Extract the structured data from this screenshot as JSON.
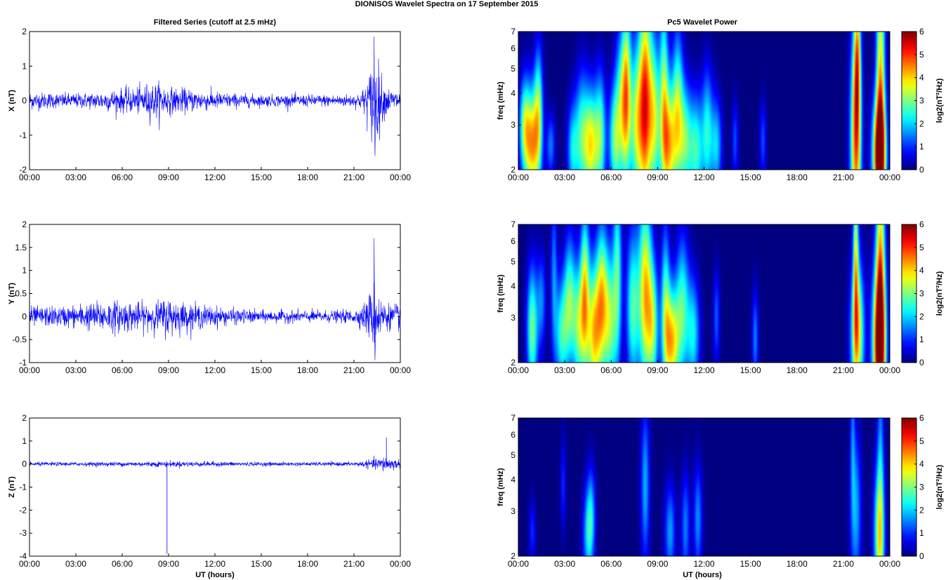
{
  "figure": {
    "title": "DIONISOS Wavelet Spectra on 17 September 2015",
    "left_title": "Filtered Series (cutoff at 2.5 mHz)",
    "right_title": "Pc5 Wavelet Power",
    "xlabel": "UT (hours)"
  },
  "chart_data": [
    {
      "type": "line",
      "panel": "time-series-x",
      "ylabel": "X (nT)",
      "ylim": [
        -2,
        2
      ],
      "yticks": [
        "-2",
        "-1",
        "0",
        "1",
        "2"
      ],
      "xticks": [
        "00:00",
        "03:00",
        "06:00",
        "09:00",
        "12:00",
        "15:00",
        "18:00",
        "21:00",
        "00:00"
      ],
      "xlim_hours": [
        0,
        24
      ],
      "color": "#0000ff",
      "series": [
        {
          "x_hours": [
            0,
            1,
            2,
            3,
            4,
            5,
            6,
            7,
            7.8,
            8.5,
            9,
            10,
            11,
            12,
            13,
            14,
            15,
            16,
            17,
            18,
            19,
            20,
            21,
            21.5,
            22,
            22.3,
            22.6,
            23,
            23.5,
            24
          ],
          "envelope": [
            0.3,
            0.28,
            0.25,
            0.25,
            0.28,
            0.35,
            0.4,
            0.45,
            0.6,
            0.6,
            0.45,
            0.4,
            0.35,
            0.3,
            0.25,
            0.22,
            0.2,
            0.2,
            0.2,
            0.2,
            0.2,
            0.2,
            0.22,
            0.3,
            0.9,
            1.8,
            1.2,
            0.5,
            0.35,
            0.4
          ]
        }
      ],
      "extremes": {
        "max": 1.85,
        "min": -1.6,
        "at_hours": 22.3
      }
    },
    {
      "type": "line",
      "panel": "time-series-y",
      "ylabel": "Y (nT)",
      "ylim": [
        -1,
        2
      ],
      "yticks": [
        "-1",
        "-0.5",
        "0",
        "0.5",
        "1",
        "1.5",
        "2"
      ],
      "xticks": [
        "00:00",
        "03:00",
        "06:00",
        "09:00",
        "12:00",
        "15:00",
        "18:00",
        "21:00",
        "00:00"
      ],
      "xlim_hours": [
        0,
        24
      ],
      "color": "#0000ff",
      "series": [
        {
          "x_hours": [
            0,
            1,
            2,
            3,
            4,
            5,
            6,
            7,
            8,
            9,
            10,
            11,
            12,
            13,
            14,
            15,
            16,
            17,
            18,
            19,
            20,
            21,
            21.5,
            22,
            22.3,
            22.6,
            23,
            23.5,
            24
          ],
          "envelope": [
            0.25,
            0.25,
            0.25,
            0.3,
            0.35,
            0.4,
            0.4,
            0.35,
            0.35,
            0.5,
            0.35,
            0.3,
            0.25,
            0.2,
            0.18,
            0.15,
            0.15,
            0.15,
            0.15,
            0.15,
            0.15,
            0.18,
            0.25,
            0.6,
            0.85,
            0.6,
            0.35,
            0.3,
            0.35
          ]
        }
      ],
      "extremes": {
        "max": 1.7,
        "min": -0.95,
        "at_hours": 22.3
      }
    },
    {
      "type": "line",
      "panel": "time-series-z",
      "ylabel": "Z (nT)",
      "ylim": [
        -4,
        2
      ],
      "yticks": [
        "-4",
        "-3",
        "-2",
        "-1",
        "0",
        "1",
        "2"
      ],
      "xticks": [
        "00:00",
        "03:00",
        "06:00",
        "09:00",
        "12:00",
        "15:00",
        "18:00",
        "21:00",
        "00:00"
      ],
      "xlim_hours": [
        0,
        24
      ],
      "color": "#0000ff",
      "series": [
        {
          "x_hours": [
            0,
            3,
            6,
            9,
            12,
            15,
            18,
            21,
            22,
            23,
            24
          ],
          "envelope": [
            0.1,
            0.1,
            0.12,
            0.15,
            0.12,
            0.1,
            0.1,
            0.1,
            0.2,
            0.4,
            0.2
          ]
        }
      ],
      "spikes": [
        {
          "at_hours": 8.9,
          "value": -3.9
        },
        {
          "at_hours": 23.1,
          "value": 1.15
        }
      ]
    },
    {
      "type": "heatmap",
      "panel": "wavelet-x",
      "ylabel": "freq (mHz)",
      "yscale": "log",
      "ylim": [
        2,
        7
      ],
      "yticks": [
        "2",
        "3",
        "4",
        "5",
        "6",
        "7"
      ],
      "xticks": [
        "00:00",
        "03:00",
        "06:00",
        "09:00",
        "12:00",
        "15:00",
        "18:00",
        "21:00",
        "00:00"
      ],
      "colorbar": {
        "label": "log2(nT²/Hz)",
        "range": [
          0,
          6
        ],
        "ticks": [
          "0",
          "1",
          "2",
          "3",
          "4",
          "5",
          "6"
        ],
        "colormap": "jet"
      },
      "blobs": [
        {
          "t": 0.9,
          "f": 2.5,
          "w": 0.35,
          "fspan": 0.35,
          "v": 4.0
        },
        {
          "t": 0.4,
          "f": 3.0,
          "w": 0.25,
          "fspan": 0.3,
          "v": 2.5
        },
        {
          "t": 1.3,
          "f": 3.5,
          "w": 0.2,
          "fspan": 0.4,
          "v": 2.5
        },
        {
          "t": 2.1,
          "f": 2.5,
          "w": 0.2,
          "fspan": 0.2,
          "v": 1.5
        },
        {
          "t": 3.5,
          "f": 2.4,
          "w": 0.25,
          "fspan": 0.3,
          "v": 2.0
        },
        {
          "t": 4.1,
          "f": 2.7,
          "w": 0.3,
          "fspan": 0.4,
          "v": 2.5
        },
        {
          "t": 4.7,
          "f": 2.5,
          "w": 0.3,
          "fspan": 0.35,
          "v": 3.5
        },
        {
          "t": 5.3,
          "f": 2.7,
          "w": 0.25,
          "fspan": 0.4,
          "v": 2.8
        },
        {
          "t": 6.2,
          "f": 2.6,
          "w": 0.25,
          "fspan": 0.35,
          "v": 2.5
        },
        {
          "t": 6.7,
          "f": 3.5,
          "w": 0.3,
          "fspan": 0.5,
          "v": 3.0
        },
        {
          "t": 7.0,
          "f": 4.2,
          "w": 0.2,
          "fspan": 0.55,
          "v": 2.8
        },
        {
          "t": 7.6,
          "f": 3.0,
          "w": 0.3,
          "fspan": 0.5,
          "v": 3.0
        },
        {
          "t": 8.2,
          "f": 3.6,
          "w": 0.3,
          "fspan": 0.7,
          "v": 5.0
        },
        {
          "t": 8.8,
          "f": 3.2,
          "w": 0.25,
          "fspan": 0.5,
          "v": 3.0
        },
        {
          "t": 9.4,
          "f": 4.5,
          "w": 0.2,
          "fspan": 0.6,
          "v": 2.5
        },
        {
          "t": 9.7,
          "f": 2.5,
          "w": 0.35,
          "fspan": 0.4,
          "v": 4.0
        },
        {
          "t": 10.3,
          "f": 3.5,
          "w": 0.25,
          "fspan": 0.5,
          "v": 2.8
        },
        {
          "t": 10.8,
          "f": 2.6,
          "w": 0.3,
          "fspan": 0.35,
          "v": 2.7
        },
        {
          "t": 11.5,
          "f": 2.4,
          "w": 0.3,
          "fspan": 0.35,
          "v": 2.5
        },
        {
          "t": 12.2,
          "f": 2.8,
          "w": 0.25,
          "fspan": 0.4,
          "v": 2.3
        },
        {
          "t": 12.8,
          "f": 2.5,
          "w": 0.25,
          "fspan": 0.3,
          "v": 2.0
        },
        {
          "t": 14.0,
          "f": 2.6,
          "w": 0.15,
          "fspan": 0.25,
          "v": 1.2
        },
        {
          "t": 15.8,
          "f": 2.6,
          "w": 0.15,
          "fspan": 0.25,
          "v": 1.2
        },
        {
          "t": 21.8,
          "f": 2.6,
          "w": 0.25,
          "fspan": 0.7,
          "v": 4.5
        },
        {
          "t": 21.9,
          "f": 5.5,
          "w": 0.15,
          "fspan": 0.5,
          "v": 3.0
        },
        {
          "t": 23.3,
          "f": 2.3,
          "w": 0.3,
          "fspan": 0.35,
          "v": 5.5
        },
        {
          "t": 23.4,
          "f": 4.0,
          "w": 0.2,
          "fspan": 1.0,
          "v": 4.0
        }
      ]
    },
    {
      "type": "heatmap",
      "panel": "wavelet-y",
      "ylabel": "freq (mHz)",
      "yscale": "log",
      "ylim": [
        2,
        7
      ],
      "yticks": [
        "2",
        "3",
        "4",
        "5",
        "6",
        "7"
      ],
      "xticks": [
        "00:00",
        "03:00",
        "06:00",
        "09:00",
        "12:00",
        "15:00",
        "18:00",
        "21:00",
        "00:00"
      ],
      "colorbar": {
        "label": "log2(nT²/Hz)",
        "range": [
          0,
          6
        ],
        "ticks": [
          "0",
          "1",
          "2",
          "3",
          "4",
          "5",
          "6"
        ],
        "colormap": "jet"
      },
      "blobs": [
        {
          "t": 0.9,
          "f": 2.7,
          "w": 0.25,
          "fspan": 0.4,
          "v": 3.0
        },
        {
          "t": 1.5,
          "f": 3.5,
          "w": 0.2,
          "fspan": 0.3,
          "v": 1.5
        },
        {
          "t": 2.3,
          "f": 4.5,
          "w": 0.15,
          "fspan": 0.5,
          "v": 1.5
        },
        {
          "t": 2.8,
          "f": 2.6,
          "w": 0.3,
          "fspan": 0.35,
          "v": 2.5
        },
        {
          "t": 3.3,
          "f": 3.6,
          "w": 0.25,
          "fspan": 0.4,
          "v": 2.5
        },
        {
          "t": 3.9,
          "f": 2.8,
          "w": 0.3,
          "fspan": 0.4,
          "v": 3.0
        },
        {
          "t": 4.3,
          "f": 4.0,
          "w": 0.2,
          "fspan": 0.5,
          "v": 3.0
        },
        {
          "t": 4.9,
          "f": 2.6,
          "w": 0.35,
          "fspan": 0.45,
          "v": 4.0
        },
        {
          "t": 5.4,
          "f": 3.8,
          "w": 0.25,
          "fspan": 0.45,
          "v": 2.8
        },
        {
          "t": 5.9,
          "f": 2.9,
          "w": 0.3,
          "fspan": 0.45,
          "v": 3.0
        },
        {
          "t": 6.4,
          "f": 4.5,
          "w": 0.2,
          "fspan": 0.6,
          "v": 2.5
        },
        {
          "t": 7.4,
          "f": 3.3,
          "w": 0.3,
          "fspan": 0.5,
          "v": 2.7
        },
        {
          "t": 8.2,
          "f": 3.8,
          "w": 0.3,
          "fspan": 0.6,
          "v": 4.0
        },
        {
          "t": 8.7,
          "f": 2.8,
          "w": 0.25,
          "fspan": 0.4,
          "v": 2.8
        },
        {
          "t": 9.5,
          "f": 3.5,
          "w": 0.2,
          "fspan": 0.5,
          "v": 2.3
        },
        {
          "t": 9.9,
          "f": 2.4,
          "w": 0.35,
          "fspan": 0.35,
          "v": 4.0
        },
        {
          "t": 10.6,
          "f": 3.3,
          "w": 0.3,
          "fspan": 0.45,
          "v": 2.5
        },
        {
          "t": 11.3,
          "f": 2.6,
          "w": 0.3,
          "fspan": 0.35,
          "v": 2.2
        },
        {
          "t": 12.8,
          "f": 3.0,
          "w": 0.15,
          "fspan": 0.3,
          "v": 1.3
        },
        {
          "t": 15.3,
          "f": 2.5,
          "w": 0.15,
          "fspan": 0.3,
          "v": 1.5
        },
        {
          "t": 21.9,
          "f": 2.6,
          "w": 0.3,
          "fspan": 0.45,
          "v": 4.0
        },
        {
          "t": 21.8,
          "f": 5.5,
          "w": 0.12,
          "fspan": 0.6,
          "v": 3.0
        },
        {
          "t": 23.3,
          "f": 2.4,
          "w": 0.3,
          "fspan": 0.5,
          "v": 5.5
        },
        {
          "t": 23.4,
          "f": 4.5,
          "w": 0.2,
          "fspan": 1.2,
          "v": 3.5
        }
      ]
    },
    {
      "type": "heatmap",
      "panel": "wavelet-z",
      "ylabel": "freq (mHz)",
      "yscale": "log",
      "ylim": [
        2,
        7
      ],
      "yticks": [
        "2",
        "3",
        "4",
        "5",
        "6",
        "7"
      ],
      "xticks": [
        "00:00",
        "03:00",
        "06:00",
        "09:00",
        "12:00",
        "15:00",
        "18:00",
        "21:00",
        "00:00"
      ],
      "colorbar": {
        "label": "log2(nT²/Hz)",
        "range": [
          0,
          6
        ],
        "ticks": [
          "0",
          "1",
          "2",
          "3",
          "4",
          "5",
          "6"
        ],
        "colormap": "jet"
      },
      "blobs": [
        {
          "t": 0.9,
          "f": 2.5,
          "w": 0.15,
          "fspan": 0.2,
          "v": 1.0
        },
        {
          "t": 2.9,
          "f": 3.8,
          "w": 0.12,
          "fspan": 0.3,
          "v": 1.0
        },
        {
          "t": 4.5,
          "f": 2.4,
          "w": 0.25,
          "fspan": 0.3,
          "v": 1.8
        },
        {
          "t": 4.7,
          "f": 3.0,
          "w": 0.2,
          "fspan": 0.3,
          "v": 1.5
        },
        {
          "t": 8.2,
          "f": 3.8,
          "w": 0.2,
          "fspan": 0.5,
          "v": 1.8
        },
        {
          "t": 9.8,
          "f": 2.5,
          "w": 0.25,
          "fspan": 0.3,
          "v": 1.7
        },
        {
          "t": 10.8,
          "f": 2.6,
          "w": 0.2,
          "fspan": 0.35,
          "v": 1.5
        },
        {
          "t": 11.6,
          "f": 2.8,
          "w": 0.2,
          "fspan": 0.35,
          "v": 1.6
        },
        {
          "t": 21.8,
          "f": 3.0,
          "w": 0.25,
          "fspan": 0.5,
          "v": 1.8
        },
        {
          "t": 21.6,
          "f": 6.0,
          "w": 0.1,
          "fspan": 0.5,
          "v": 1.2
        },
        {
          "t": 23.3,
          "f": 2.4,
          "w": 0.25,
          "fspan": 0.45,
          "v": 3.0
        },
        {
          "t": 23.4,
          "f": 4.0,
          "w": 0.15,
          "fspan": 1.0,
          "v": 1.5
        }
      ]
    }
  ]
}
